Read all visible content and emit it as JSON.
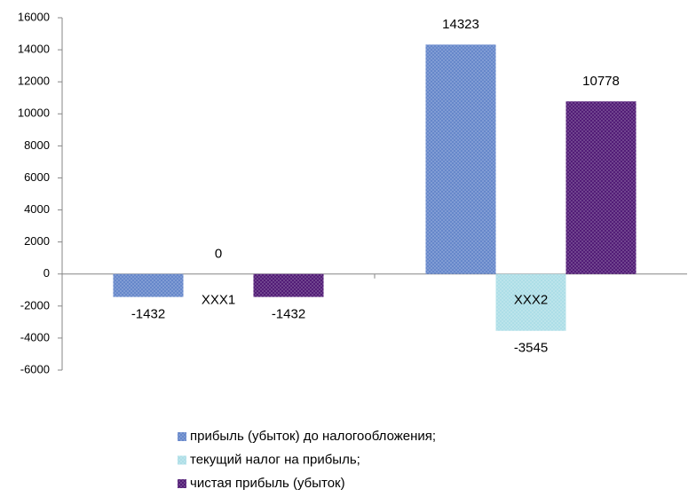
{
  "chart_data": {
    "type": "bar",
    "categories": [
      "XXX1",
      "XXX2"
    ],
    "series": [
      {
        "name": "прибыль (убыток) до налогообложения;",
        "color": "#5f82c8",
        "values": [
          -1432,
          14323
        ]
      },
      {
        "name": "текущий налог на прибыль;",
        "color": "#a9dde6",
        "values": [
          0,
          -3545
        ]
      },
      {
        "name": "чистая прибыль (убыток)",
        "color": "#4a1270",
        "values": [
          -1432,
          10778
        ]
      }
    ],
    "ylim": [
      -6000,
      16000
    ],
    "yticks": [
      -6000,
      -4000,
      -2000,
      0,
      2000,
      4000,
      6000,
      8000,
      10000,
      12000,
      14000,
      16000
    ],
    "grid": false,
    "legend": "bottom"
  }
}
